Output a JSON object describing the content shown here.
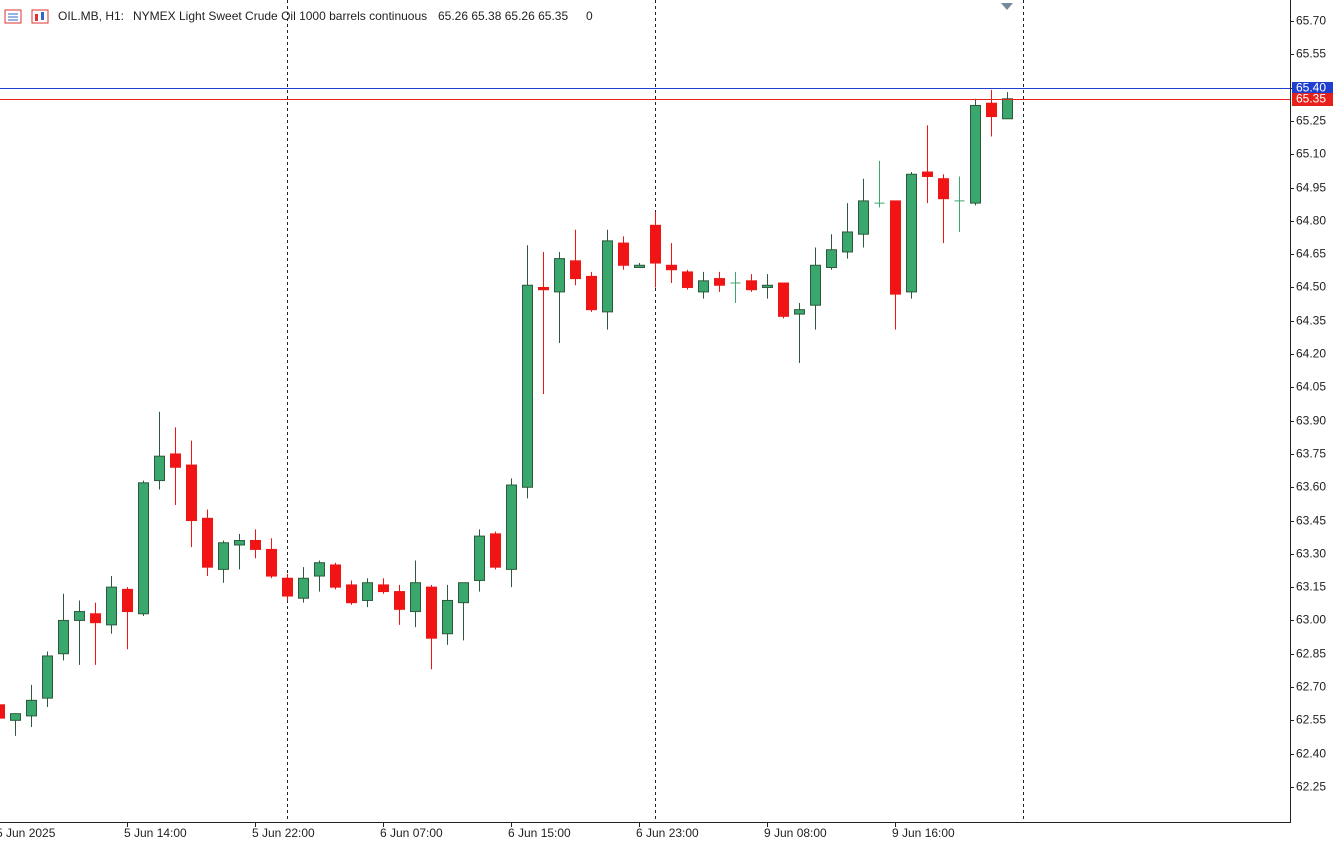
{
  "chart_data": {
    "type": "candlestick",
    "symbol": "OIL.MB, H1:",
    "description": "NYMEX Light Sweet Crude Oil 1000 barrels continuous",
    "quote": "65.26 65.38 65.26 65.35",
    "volume": "0",
    "categories": [
      "5 Jun 2025",
      null,
      null,
      null,
      null,
      null,
      null,
      null,
      "5 Jun 14:00",
      null,
      null,
      null,
      null,
      null,
      null,
      null,
      "5 Jun 22:00",
      null,
      null,
      null,
      null,
      null,
      null,
      null,
      "6 Jun 07:00",
      null,
      null,
      null,
      null,
      null,
      null,
      null,
      "6 Jun 15:00",
      null,
      null,
      null,
      null,
      null,
      null,
      null,
      "6 Jun 23:00",
      null,
      null,
      null,
      null,
      null,
      null,
      null,
      "9 Jun 08:00",
      null,
      null,
      null,
      null,
      null,
      null,
      null,
      "9 Jun 16:00",
      null,
      null,
      null,
      null,
      null,
      null,
      null
    ],
    "open": [
      62.62,
      62.55,
      62.57,
      62.65,
      62.85,
      63.0,
      63.03,
      62.98,
      63.14,
      63.03,
      63.63,
      63.75,
      63.7,
      63.46,
      63.23,
      63.34,
      63.36,
      63.32,
      63.19,
      63.1,
      63.2,
      63.25,
      63.16,
      63.09,
      63.16,
      63.13,
      63.04,
      63.15,
      62.94,
      63.08,
      63.18,
      63.39,
      63.23,
      63.6,
      64.5,
      64.48,
      64.62,
      64.55,
      64.39,
      64.7,
      64.59,
      64.78,
      64.6,
      64.57,
      64.48,
      64.54,
      64.52,
      64.53,
      64.5,
      64.52,
      64.38,
      64.42,
      64.59,
      64.66,
      64.74,
      64.88,
      64.89,
      64.48,
      65.02,
      64.99,
      64.89,
      64.88,
      65.33,
      65.26
    ],
    "high": [
      62.62,
      62.58,
      62.71,
      62.86,
      63.12,
      63.09,
      63.08,
      63.2,
      63.15,
      63.63,
      63.94,
      63.87,
      63.81,
      63.5,
      63.36,
      63.39,
      63.41,
      63.37,
      63.21,
      63.24,
      63.27,
      63.26,
      63.18,
      63.19,
      63.19,
      63.16,
      63.27,
      63.16,
      63.16,
      63.17,
      63.41,
      63.4,
      63.64,
      64.69,
      64.66,
      64.66,
      64.76,
      64.57,
      64.76,
      64.73,
      64.61,
      64.84,
      64.7,
      64.58,
      64.57,
      64.57,
      64.57,
      64.56,
      64.56,
      64.52,
      64.43,
      64.68,
      64.74,
      64.88,
      64.99,
      65.07,
      64.89,
      65.02,
      65.23,
      65.01,
      65.0,
      65.35,
      65.39,
      65.38
    ],
    "low": [
      62.56,
      62.48,
      62.52,
      62.61,
      62.82,
      62.8,
      62.8,
      62.94,
      62.87,
      63.02,
      63.59,
      63.52,
      63.33,
      63.2,
      63.17,
      63.23,
      63.28,
      63.19,
      63.09,
      63.08,
      63.13,
      63.14,
      63.07,
      63.06,
      63.12,
      62.98,
      62.97,
      62.78,
      62.89,
      62.91,
      63.13,
      63.23,
      63.15,
      63.55,
      64.02,
      64.25,
      64.51,
      64.39,
      64.31,
      64.58,
      64.59,
      64.5,
      64.52,
      64.49,
      64.45,
      64.48,
      64.43,
      64.48,
      64.45,
      64.36,
      64.16,
      64.31,
      64.58,
      64.63,
      64.68,
      64.86,
      64.31,
      64.45,
      64.88,
      64.7,
      64.75,
      64.87,
      65.18,
      65.26
    ],
    "close": [
      62.56,
      62.58,
      62.64,
      62.84,
      63.0,
      63.04,
      62.99,
      63.15,
      63.04,
      63.62,
      63.74,
      63.69,
      63.45,
      63.24,
      63.35,
      63.36,
      63.32,
      63.2,
      63.11,
      63.19,
      63.26,
      63.15,
      63.08,
      63.17,
      63.13,
      63.05,
      63.17,
      62.92,
      63.09,
      63.17,
      63.38,
      63.24,
      63.61,
      64.51,
      64.49,
      64.63,
      64.54,
      64.4,
      64.71,
      64.6,
      64.6,
      64.61,
      64.58,
      64.5,
      64.53,
      64.51,
      64.52,
      64.49,
      64.51,
      64.37,
      64.4,
      64.6,
      64.67,
      64.75,
      64.89,
      64.88,
      64.47,
      65.01,
      65.0,
      64.9,
      64.89,
      65.32,
      65.27,
      65.35
    ],
    "up_color": "#3aa76d",
    "down_color": "#f01414",
    "ylim": [
      62.092,
      65.795
    ],
    "yticks": [
      {
        "value": 62.25,
        "label": "62.25"
      },
      {
        "value": 62.4,
        "label": "62.40"
      },
      {
        "value": 62.55,
        "label": "62.55"
      },
      {
        "value": 62.7,
        "label": "62.70"
      },
      {
        "value": 62.85,
        "label": "62.85"
      },
      {
        "value": 63,
        "label": "63.00"
      },
      {
        "value": 63.15,
        "label": "63.15"
      },
      {
        "value": 63.3,
        "label": "63.30"
      },
      {
        "value": 63.45,
        "label": "63.45"
      },
      {
        "value": 63.6,
        "label": "63.60"
      },
      {
        "value": 63.75,
        "label": "63.75"
      },
      {
        "value": 63.9,
        "label": "63.90"
      },
      {
        "value": 64.05,
        "label": "64.05"
      },
      {
        "value": 64.2,
        "label": "64.20"
      },
      {
        "value": 64.35,
        "label": "64.35"
      },
      {
        "value": 64.5,
        "label": "64.50"
      },
      {
        "value": 64.65,
        "label": "64.65"
      },
      {
        "value": 64.8,
        "label": "64.80"
      },
      {
        "value": 64.95,
        "label": "64.95"
      },
      {
        "value": 65.1,
        "label": "65.10"
      },
      {
        "value": 65.25,
        "label": "65.25"
      },
      {
        "value": 65.4,
        "label": "65.40"
      },
      {
        "value": 65.55,
        "label": "65.55"
      },
      {
        "value": 65.7,
        "label": "65.70"
      }
    ],
    "price_lines": [
      {
        "value": 65.4,
        "label": "65.40",
        "color": "#1f3fd0"
      },
      {
        "value": 65.35,
        "label": "65.35",
        "color": "#e8201c"
      }
    ]
  }
}
